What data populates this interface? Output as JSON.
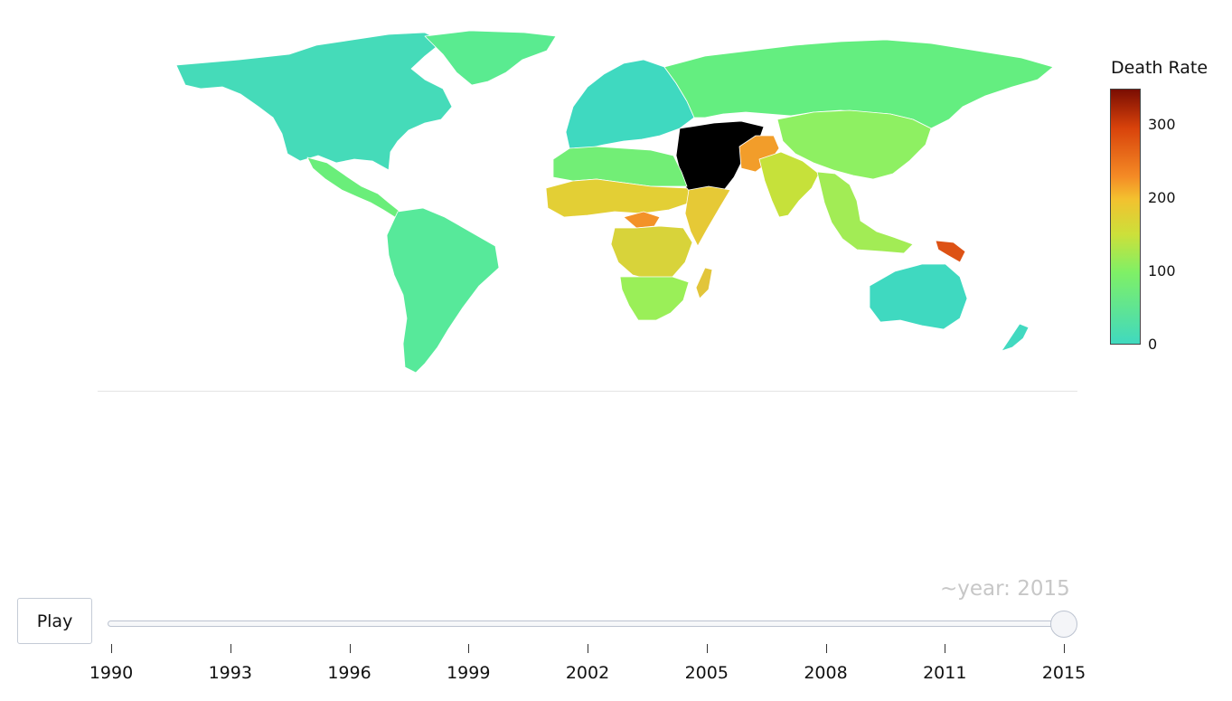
{
  "colorbar": {
    "title": "Death Rate",
    "ticks": [
      {
        "label": "300",
        "value": 300
      },
      {
        "label": "200",
        "value": 200
      },
      {
        "label": "100",
        "value": 100
      },
      {
        "label": "0",
        "value": 0
      }
    ],
    "range": [
      0,
      350
    ],
    "colors": {
      "low": "#40d9bf",
      "mid_low": "#7ff066",
      "mid": "#cce03a",
      "mid_high": "#f48a25",
      "high": "#7a0d02"
    }
  },
  "map": {
    "regions": [
      {
        "name": "North America",
        "value": 20,
        "color": "#45dbb9"
      },
      {
        "name": "Greenland",
        "value": 45,
        "color": "#5aeb90"
      },
      {
        "name": "Central America",
        "value": 50,
        "color": "#6aee7a"
      },
      {
        "name": "South America",
        "value": 45,
        "color": "#57e99a"
      },
      {
        "name": "Europe",
        "value": 10,
        "color": "#3fd9c0"
      },
      {
        "name": "Russia",
        "value": 70,
        "color": "#64ee80"
      },
      {
        "name": "China",
        "value": 95,
        "color": "#8ef062"
      },
      {
        "name": "India",
        "value": 150,
        "color": "#c6e13a"
      },
      {
        "name": "Afghanistan",
        "value": 210,
        "color": "#f29d2a"
      },
      {
        "name": "North Africa",
        "value": 75,
        "color": "#72ee76"
      },
      {
        "name": "Sahel",
        "value": 175,
        "color": "#e3cf35"
      },
      {
        "name": "Central African Republic",
        "value": 230,
        "color": "#f39228"
      },
      {
        "name": "Somalia",
        "value": 185,
        "color": "#e6c936"
      },
      {
        "name": "Central Africa",
        "value": 165,
        "color": "#d8d33a"
      },
      {
        "name": "Southern Africa",
        "value": 110,
        "color": "#9aef58"
      },
      {
        "name": "Madagascar",
        "value": 175,
        "color": "#e2c53a"
      },
      {
        "name": "Southeast Asia",
        "value": 110,
        "color": "#a2ec55"
      },
      {
        "name": "Papua New Guinea",
        "value": 300,
        "color": "#dd5215"
      },
      {
        "name": "Australia",
        "value": 10,
        "color": "#3fd9c0"
      },
      {
        "name": "New Zealand",
        "value": 15,
        "color": "#42d9c0"
      }
    ]
  },
  "controls": {
    "play_label": "Play",
    "slider_prefix": "~year: ",
    "slider_value": "2015",
    "slider_readout": "~year: 2015",
    "slider_years": [
      "1990",
      "1993",
      "1996",
      "1999",
      "2002",
      "2005",
      "2008",
      "2011",
      "2015"
    ],
    "slider_position": 1.0
  }
}
